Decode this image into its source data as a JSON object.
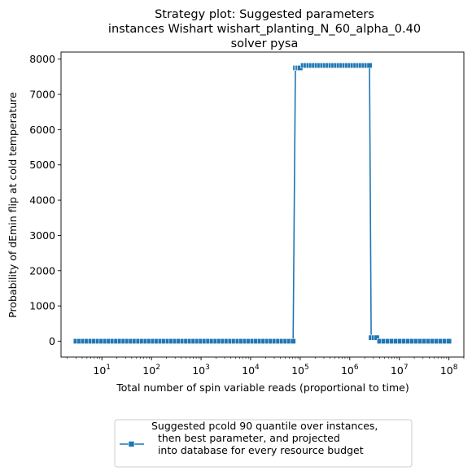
{
  "chart_data": {
    "type": "line",
    "title_lines": [
      "Strategy plot: Suggested parameters",
      "instances Wishart wishart_planting_N_60_alpha_0.40",
      "solver pysa"
    ],
    "xlabel": "Total number of spin variable reads (proportional to time)",
    "ylabel": "Probability of dEmin flip at cold temperature",
    "x_scale": "log",
    "xlim": [
      1.5,
      200000000
    ],
    "ylim": [
      -450,
      8200
    ],
    "y_ticks": [
      0,
      1000,
      2000,
      3000,
      4000,
      5000,
      6000,
      7000,
      8000
    ],
    "x_tick_labels": [
      {
        "base": "10",
        "exp": "1",
        "value": 10
      },
      {
        "base": "10",
        "exp": "2",
        "value": 100
      },
      {
        "base": "10",
        "exp": "3",
        "value": 1000
      },
      {
        "base": "10",
        "exp": "4",
        "value": 10000
      },
      {
        "base": "10",
        "exp": "5",
        "value": 100000
      },
      {
        "base": "10",
        "exp": "6",
        "value": 1000000
      },
      {
        "base": "10",
        "exp": "7",
        "value": 10000000
      },
      {
        "base": "10",
        "exp": "8",
        "value": 100000000
      }
    ],
    "series": [
      {
        "name": "Suggested pcold 90 quantile over instances,\n  then best parameter, and projected\n  into database for every resource budget",
        "color": "#1f77b4",
        "marker": "square",
        "segments": [
          {
            "x_from": 3,
            "x_to": 72000,
            "y": 0,
            "points": 60
          },
          {
            "x_from": 80000,
            "x_to": 100000,
            "y": 7750,
            "points": 4
          },
          {
            "x_from": 115000,
            "x_to": 2500000,
            "y": 7820,
            "points": 25
          },
          {
            "x_from": 2700000,
            "x_to": 3500000,
            "y": 100,
            "points": 3
          },
          {
            "x_from": 4000000,
            "x_to": 100000000,
            "y": 0,
            "points": 18
          }
        ]
      }
    ],
    "legend_position": "below-center",
    "grid": false
  }
}
